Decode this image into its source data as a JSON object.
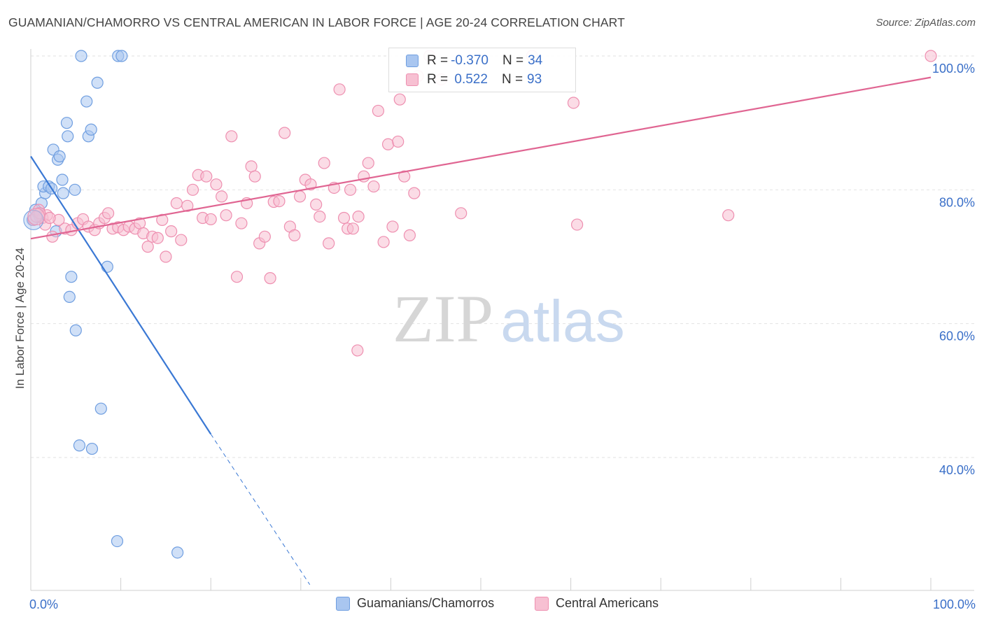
{
  "header": {
    "title": "GUAMANIAN/CHAMORRO VS CENTRAL AMERICAN IN LABOR FORCE | AGE 20-24 CORRELATION CHART",
    "source": "Source: ZipAtlas.com"
  },
  "watermark": {
    "part1": "ZIP",
    "part2": "atlas"
  },
  "legend": {
    "rows": [
      {
        "r_label": "R =",
        "r_value": "-0.370",
        "n_label": "N =",
        "n_value": "34",
        "color": "#a9c6f0",
        "border": "#6f9ee0"
      },
      {
        "r_label": "R =",
        "r_value": " 0.522",
        "n_label": "N =",
        "n_value": "93",
        "color": "#f7c0d2",
        "border": "#ee8fb0"
      }
    ]
  },
  "bottom_legend": [
    {
      "label": "Guamanians/Chamorros",
      "color": "#a9c6f0",
      "border": "#6f9ee0"
    },
    {
      "label": "Central Americans",
      "color": "#f7c0d2",
      "border": "#ee8fb0"
    }
  ],
  "chart_data": {
    "type": "scatter",
    "title": "GUAMANIAN/CHAMORRO VS CENTRAL AMERICAN IN LABOR FORCE | AGE 20-24 CORRELATION CHART",
    "xlabel": "",
    "ylabel": "In Labor Force | Age 20-24",
    "xlim": [
      0,
      100
    ],
    "ylim": [
      20,
      102
    ],
    "x_tick_labels": [
      {
        "value": 0,
        "label": "0.0%"
      },
      {
        "value": 100,
        "label": "100.0%"
      }
    ],
    "y_tick_labels": [
      {
        "value": 40,
        "label": "40.0%"
      },
      {
        "value": 60,
        "label": "60.0%"
      },
      {
        "value": 80,
        "label": "80.0%"
      },
      {
        "value": 100,
        "label": "100.0%"
      }
    ],
    "grid": true,
    "legend_position": "top-center",
    "series": [
      {
        "name": "Guamanians/Chamorros",
        "color": "#a9c6f0",
        "edge": "#6f9ee0",
        "trend_color": "#3a78d4",
        "trend": {
          "x0": 0,
          "y0": 85,
          "x1": 20,
          "y1": 43.5,
          "dash_to_x": 31,
          "dash_to_y": 21
        },
        "points": [
          [
            0.2,
            75.5
          ],
          [
            0.8,
            76.5
          ],
          [
            1.2,
            78.0
          ],
          [
            1.6,
            79.5
          ],
          [
            1.4,
            80.5
          ],
          [
            2.0,
            80.5
          ],
          [
            2.3,
            80.2
          ],
          [
            2.5,
            86.0
          ],
          [
            2.8,
            73.8
          ],
          [
            3.0,
            84.5
          ],
          [
            3.2,
            85.0
          ],
          [
            3.5,
            81.5
          ],
          [
            3.6,
            79.5
          ],
          [
            4.0,
            90.0
          ],
          [
            4.1,
            88.0
          ],
          [
            4.5,
            67.0
          ],
          [
            4.3,
            64.0
          ],
          [
            4.9,
            80.0
          ],
          [
            5.0,
            59.0
          ],
          [
            5.6,
            100.0
          ],
          [
            6.2,
            93.2
          ],
          [
            6.4,
            88.0
          ],
          [
            6.7,
            89.0
          ],
          [
            7.4,
            96.0
          ],
          [
            7.8,
            47.3
          ],
          [
            8.5,
            68.5
          ],
          [
            9.7,
            100.0
          ],
          [
            10.1,
            100.0
          ],
          [
            5.4,
            41.8
          ],
          [
            6.8,
            41.3
          ],
          [
            9.6,
            27.5
          ],
          [
            16.3,
            25.8
          ],
          [
            0.5,
            77.0
          ],
          [
            1.0,
            76.0
          ]
        ]
      },
      {
        "name": "Central Americans",
        "color": "#f7c0d2",
        "edge": "#ee8fb0",
        "trend_color": "#e06592",
        "trend": {
          "x0": 0,
          "y0": 72.7,
          "x1": 100,
          "y1": 96.8
        },
        "points": [
          [
            0.3,
            75.5
          ],
          [
            0.9,
            77.0
          ],
          [
            1.3,
            75.8
          ],
          [
            1.8,
            76.2
          ],
          [
            2.4,
            73.0
          ],
          [
            3.1,
            75.5
          ],
          [
            3.8,
            74.2
          ],
          [
            4.5,
            74.0
          ],
          [
            5.2,
            75.0
          ],
          [
            5.8,
            75.6
          ],
          [
            6.4,
            74.5
          ],
          [
            7.1,
            74.0
          ],
          [
            7.6,
            75.0
          ],
          [
            8.2,
            75.8
          ],
          [
            8.6,
            76.5
          ],
          [
            9.1,
            74.2
          ],
          [
            9.7,
            74.4
          ],
          [
            10.3,
            74.0
          ],
          [
            10.9,
            74.5
          ],
          [
            11.6,
            74.2
          ],
          [
            12.1,
            75.0
          ],
          [
            12.5,
            73.5
          ],
          [
            13.0,
            71.5
          ],
          [
            13.5,
            73.0
          ],
          [
            14.1,
            72.8
          ],
          [
            14.6,
            75.5
          ],
          [
            15.0,
            70.0
          ],
          [
            15.6,
            73.8
          ],
          [
            16.2,
            78.0
          ],
          [
            16.7,
            72.5
          ],
          [
            17.4,
            77.6
          ],
          [
            18.0,
            80.0
          ],
          [
            18.6,
            82.2
          ],
          [
            19.1,
            75.8
          ],
          [
            19.5,
            82.0
          ],
          [
            20.0,
            75.6
          ],
          [
            20.6,
            80.8
          ],
          [
            21.2,
            79.0
          ],
          [
            21.7,
            76.2
          ],
          [
            22.3,
            88.0
          ],
          [
            22.9,
            67.0
          ],
          [
            23.4,
            75.0
          ],
          [
            24.0,
            78.0
          ],
          [
            24.5,
            83.5
          ],
          [
            24.9,
            82.0
          ],
          [
            25.4,
            72.0
          ],
          [
            26.0,
            73.0
          ],
          [
            26.6,
            66.8
          ],
          [
            27.0,
            78.2
          ],
          [
            27.6,
            78.3
          ],
          [
            28.2,
            88.5
          ],
          [
            28.8,
            74.5
          ],
          [
            29.3,
            73.2
          ],
          [
            29.9,
            79.0
          ],
          [
            30.5,
            81.5
          ],
          [
            31.1,
            80.8
          ],
          [
            31.7,
            77.8
          ],
          [
            32.1,
            76.0
          ],
          [
            32.6,
            84.0
          ],
          [
            33.1,
            72.0
          ],
          [
            33.7,
            80.3
          ],
          [
            34.3,
            95.0
          ],
          [
            34.8,
            75.8
          ],
          [
            35.2,
            74.2
          ],
          [
            35.8,
            74.2
          ],
          [
            36.4,
            76.0
          ],
          [
            37.0,
            82.0
          ],
          [
            37.5,
            84.0
          ],
          [
            38.1,
            80.5
          ],
          [
            38.6,
            91.8
          ],
          [
            39.2,
            72.2
          ],
          [
            39.7,
            86.8
          ],
          [
            40.2,
            74.5
          ],
          [
            40.8,
            87.2
          ],
          [
            41.0,
            93.5
          ],
          [
            41.5,
            82.0
          ],
          [
            42.1,
            73.2
          ],
          [
            42.6,
            79.5
          ],
          [
            43.0,
            97.0
          ],
          [
            44.3,
            100.0
          ],
          [
            45.6,
            96.5
          ],
          [
            47.8,
            76.5
          ],
          [
            55.7,
            100.0
          ],
          [
            60.3,
            93.0
          ],
          [
            60.7,
            74.8
          ],
          [
            77.5,
            76.2
          ],
          [
            100.0,
            100.0
          ],
          [
            36.3,
            56.0
          ],
          [
            35.5,
            80.0
          ],
          [
            1.0,
            76.5
          ],
          [
            1.6,
            74.8
          ],
          [
            2.1,
            75.8
          ],
          [
            0.6,
            76.0
          ]
        ]
      }
    ]
  }
}
